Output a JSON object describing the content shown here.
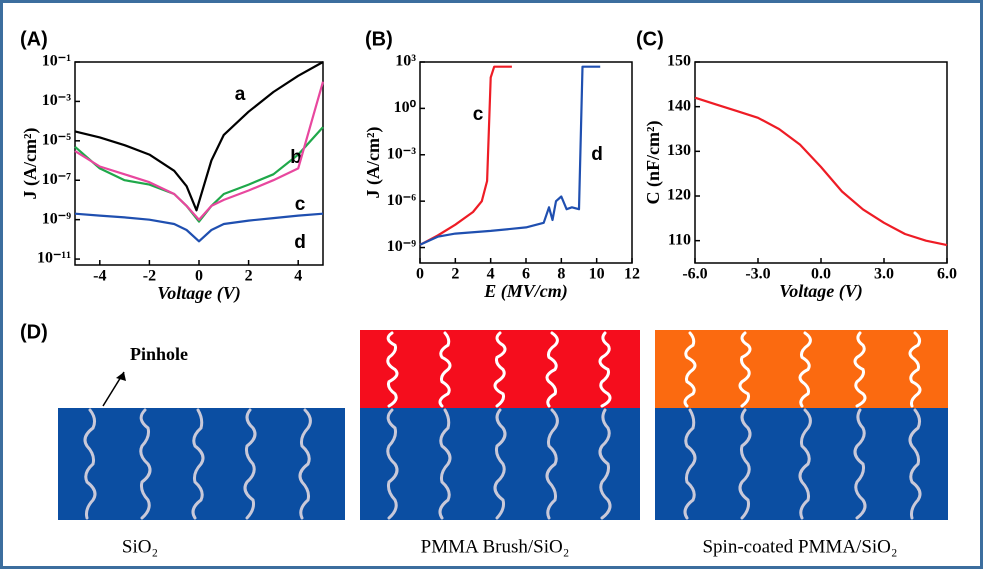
{
  "chart_data": [
    {
      "type": "line",
      "panel": "(A)",
      "xlabel": "Voltage (V)",
      "ylabel": "J (A/cm²)",
      "yscale": "log",
      "xlim": [
        -5,
        5
      ],
      "xticks": [
        -4,
        -2,
        0,
        2,
        4
      ],
      "ylim": [
        5e-12,
        0.1
      ],
      "yticks": [
        {
          "value": 0.1,
          "label": "10⁻¹"
        },
        {
          "value": 0.001,
          "label": "10⁻³"
        },
        {
          "value": 1e-05,
          "label": "10⁻⁵"
        },
        {
          "value": 1e-07,
          "label": "10⁻⁷"
        },
        {
          "value": 1e-09,
          "label": "10⁻⁹"
        },
        {
          "value": 1e-11,
          "label": "10⁻¹¹"
        }
      ],
      "series": [
        {
          "name": "a",
          "color": "#000000",
          "x": [
            -5,
            -4,
            -3,
            -2,
            -1,
            -0.5,
            -0.1,
            0.5,
            1,
            2,
            3,
            4,
            5
          ],
          "values": [
            3e-05,
            1.5e-05,
            6e-06,
            2e-06,
            3e-07,
            5e-08,
            3e-09,
            1e-06,
            2e-05,
            0.0003,
            0.003,
            0.02,
            0.1
          ]
        },
        {
          "name": "b",
          "color": "#1fa84a",
          "x": [
            -5,
            -4,
            -3,
            -2,
            -1,
            -0.5,
            0,
            0.5,
            1,
            2,
            3,
            4,
            5
          ],
          "values": [
            5e-06,
            4e-07,
            1e-07,
            6e-08,
            2e-08,
            5e-09,
            8e-10,
            5e-09,
            2e-08,
            6e-08,
            2e-07,
            2e-06,
            5e-05
          ]
        },
        {
          "name": "c",
          "color": "#e8479e",
          "x": [
            -5,
            -4,
            -3,
            -2,
            -1,
            -0.5,
            0,
            0.5,
            1,
            2,
            3,
            4,
            5
          ],
          "values": [
            3e-06,
            5e-07,
            2e-07,
            8e-08,
            2e-08,
            5e-09,
            1e-09,
            5e-09,
            1e-08,
            3e-08,
            1e-07,
            4e-07,
            0.01
          ]
        },
        {
          "name": "d",
          "color": "#1f4fb0",
          "x": [
            -5,
            -4,
            -3,
            -2,
            -1,
            -0.5,
            0,
            0.5,
            1,
            2,
            3,
            4,
            5
          ],
          "values": [
            2e-09,
            1.6e-09,
            1.3e-09,
            1e-09,
            6e-10,
            3e-10,
            8e-11,
            3e-10,
            6e-10,
            9e-10,
            1.2e-09,
            1.6e-09,
            2e-09
          ]
        }
      ]
    },
    {
      "type": "line",
      "panel": "(B)",
      "xlabel": "E (MV/cm)",
      "ylabel": "J (A/cm²)",
      "yscale": "log",
      "xlim": [
        0,
        12
      ],
      "xticks": [
        0,
        2,
        4,
        6,
        8,
        10,
        12
      ],
      "ylim": [
        1e-10,
        1000
      ],
      "yticks": [
        {
          "value": 1000,
          "label": "10³"
        },
        {
          "value": 1,
          "label": "10⁰"
        },
        {
          "value": 0.001,
          "label": "10⁻³"
        },
        {
          "value": 1e-06,
          "label": "10⁻⁶"
        },
        {
          "value": 1e-09,
          "label": "10⁻⁹"
        }
      ],
      "series": [
        {
          "name": "c",
          "color": "#ee1c25",
          "x": [
            0,
            0.5,
            1,
            2,
            3,
            3.5,
            3.8,
            4,
            4.2,
            5.2
          ],
          "values": [
            1.5e-09,
            3e-09,
            6e-09,
            3e-08,
            2e-07,
            1e-06,
            2e-05,
            100,
            500,
            500
          ]
        },
        {
          "name": "d",
          "color": "#1f4fb0",
          "x": [
            0,
            1,
            2,
            4,
            6,
            7,
            7.3,
            7.5,
            7.7,
            8,
            8.3,
            8.6,
            9,
            9.2,
            9.4,
            10.2
          ],
          "values": [
            1.5e-09,
            5e-09,
            8e-09,
            1.2e-08,
            2e-08,
            4e-08,
            4e-07,
            6e-08,
            1e-06,
            2e-06,
            3e-07,
            4e-07,
            3e-07,
            500,
            500,
            500
          ]
        }
      ]
    },
    {
      "type": "line",
      "panel": "(C)",
      "xlabel": "Voltage (V)",
      "ylabel": "C (nF/cm²)",
      "xlim": [
        -6,
        6
      ],
      "xticks": [
        {
          "value": -6,
          "label": "-6.0"
        },
        {
          "value": -3,
          "label": "-3.0"
        },
        {
          "value": 0,
          "label": "0.0"
        },
        {
          "value": 3,
          "label": "3.0"
        },
        {
          "value": 6,
          "label": "6.0"
        }
      ],
      "ylim": [
        105,
        150
      ],
      "yticks": [
        110,
        120,
        130,
        140,
        150
      ],
      "series": [
        {
          "color": "#ee1c25",
          "x": [
            -6,
            -5,
            -4,
            -3,
            -2,
            -1,
            0,
            1,
            2,
            3,
            4,
            5,
            6
          ],
          "values": [
            142,
            140.5,
            139,
            137.5,
            135,
            131.5,
            126.5,
            121,
            117,
            114,
            111.5,
            110,
            109
          ]
        }
      ]
    }
  ],
  "diagram": {
    "panel": "(D)",
    "pinhole": "Pinhole",
    "captions": [
      "SiO₂",
      "PMMA Brush/SiO₂",
      "Spin-coated PMMA/SiO₂"
    ]
  }
}
